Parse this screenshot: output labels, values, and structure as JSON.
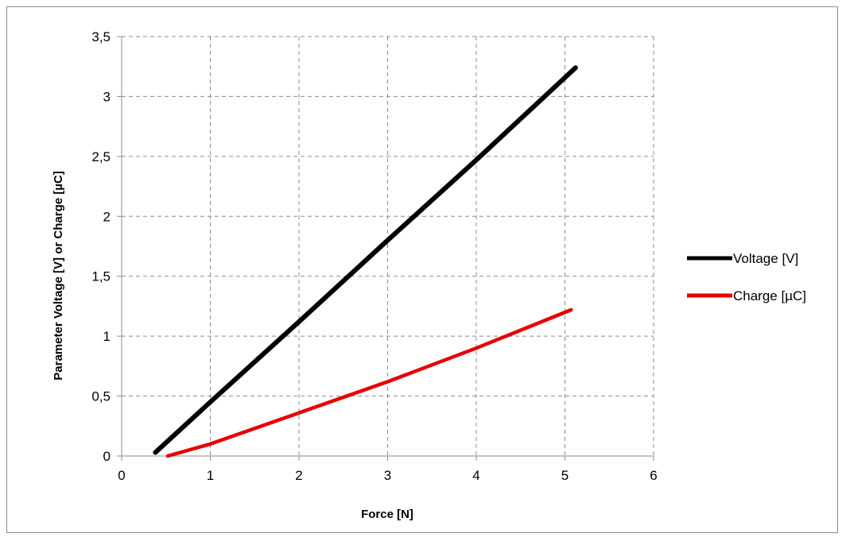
{
  "chart_data": {
    "type": "line",
    "title": "",
    "xlabel": "Force [N]",
    "ylabel": "Parameter Voltage [V] or Charge [µC]",
    "xlim": [
      0,
      6
    ],
    "ylim": [
      0,
      3.5
    ],
    "x_ticks": [
      0,
      1,
      2,
      3,
      4,
      5,
      6
    ],
    "y_ticks": [
      0,
      0.5,
      1,
      1.5,
      2,
      2.5,
      3,
      3.5
    ],
    "x_tick_labels": [
      "0",
      "1",
      "2",
      "3",
      "4",
      "5",
      "6"
    ],
    "y_tick_labels": [
      "0",
      "0,5",
      "1",
      "1,5",
      "2",
      "2,5",
      "3",
      "3,5"
    ],
    "grid": true,
    "grid_style": "dashed",
    "legend_position": "right",
    "series": [
      {
        "name": "Voltage [V]",
        "color": "#000000",
        "x": [
          0.38,
          1.0,
          2.0,
          3.0,
          4.0,
          5.12
        ],
        "y": [
          0.03,
          0.45,
          1.12,
          1.8,
          2.47,
          3.24
        ]
      },
      {
        "name": "Charge [µC]",
        "color": "#e60000",
        "x": [
          0.52,
          1.0,
          2.0,
          3.0,
          4.0,
          5.07
        ],
        "y": [
          0.0,
          0.1,
          0.36,
          0.62,
          0.9,
          1.22
        ]
      }
    ]
  }
}
